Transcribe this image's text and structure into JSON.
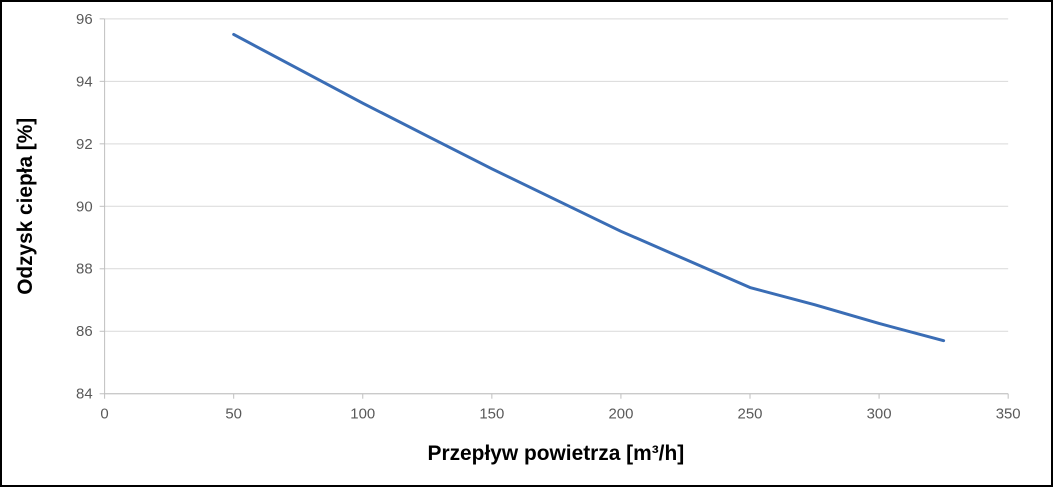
{
  "chart_data": {
    "type": "line",
    "xlabel": "Przepływ powietrza [m³/h]",
    "ylabel": "Odzysk ciepła [%]",
    "x": [
      50,
      75,
      100,
      125,
      150,
      175,
      200,
      225,
      250,
      275,
      300,
      325
    ],
    "series": [
      {
        "name": "Odzysk ciepła",
        "values": [
          95.5,
          94.4,
          93.3,
          92.25,
          91.2,
          90.2,
          89.2,
          88.3,
          87.4,
          86.85,
          86.25,
          85.7
        ]
      }
    ],
    "xlim": [
      0,
      350
    ],
    "ylim": [
      84,
      96
    ],
    "x_ticks": [
      0,
      50,
      100,
      150,
      200,
      250,
      300,
      350
    ],
    "y_ticks": [
      84,
      86,
      88,
      90,
      92,
      94,
      96
    ],
    "grid": "horizontal",
    "legend": "none"
  },
  "styles": {
    "line_color": "#3a6db5",
    "grid_color": "#d9d9d9",
    "axis_color": "#bfbfbf",
    "tick_label_color": "#595959",
    "title_color": "#000000",
    "border_color": "#000000",
    "background": "#ffffff"
  }
}
